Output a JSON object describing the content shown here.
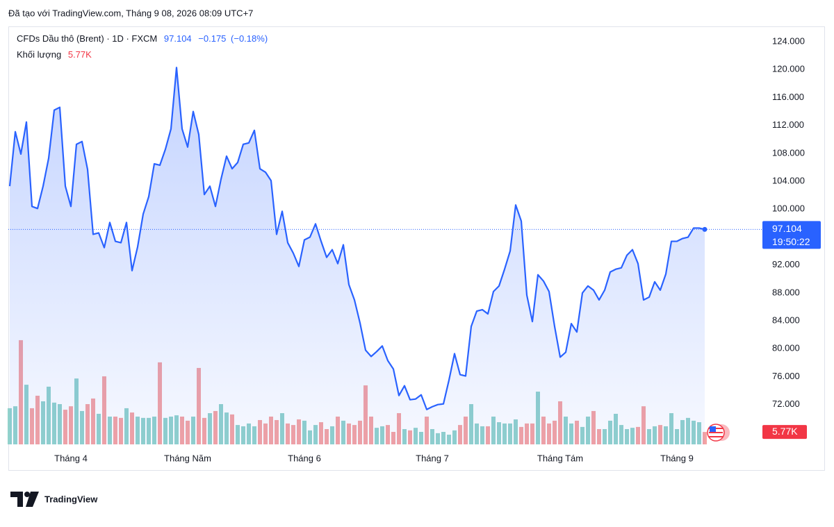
{
  "header": "Đã tạo với TradingView.com, Tháng 9 08, 2026 08:09 UTC+7",
  "logo": "TradingView",
  "chart_data": {
    "type": "area",
    "grid": false,
    "ylim": [
      66.3,
      126
    ],
    "yticks": [
      {
        "value": 72,
        "label": "72.000"
      },
      {
        "value": 76,
        "label": "76.000"
      },
      {
        "value": 80,
        "label": "80.000"
      },
      {
        "value": 84,
        "label": "84.000"
      },
      {
        "value": 88,
        "label": "88.000"
      },
      {
        "value": 92,
        "label": "92.000"
      },
      {
        "value": 96,
        "label": "96.000"
      },
      {
        "value": 100,
        "label": "100.000"
      },
      {
        "value": 104,
        "label": "104.000"
      },
      {
        "value": 108,
        "label": "108.000"
      },
      {
        "value": 112,
        "label": "112.000"
      },
      {
        "value": 116,
        "label": "116.000"
      },
      {
        "value": 120,
        "label": "120.000"
      },
      {
        "value": 124,
        "label": "124.000"
      }
    ],
    "y2lim": [
      0,
      193.5
    ],
    "change": {
      "value": -0.175,
      "label": "−0.175"
    },
    "change_percent": {
      "value": -0.18,
      "label": "(−0.18%)"
    },
    "countdown": "19:50:22",
    "categories": [
      null,
      null,
      null,
      null,
      null,
      null,
      null,
      null,
      null,
      null,
      null,
      "Tháng 4",
      null,
      null,
      null,
      null,
      null,
      null,
      null,
      null,
      null,
      null,
      null,
      null,
      null,
      null,
      null,
      null,
      null,
      null,
      null,
      null,
      "Tháng Năm",
      null,
      null,
      null,
      null,
      null,
      null,
      null,
      null,
      null,
      null,
      null,
      null,
      null,
      null,
      null,
      null,
      null,
      null,
      null,
      null,
      "Tháng 6",
      null,
      null,
      null,
      null,
      null,
      null,
      null,
      null,
      null,
      null,
      null,
      null,
      null,
      null,
      null,
      null,
      null,
      null,
      null,
      null,
      null,
      null,
      "Tháng 7",
      null,
      null,
      null,
      null,
      null,
      null,
      null,
      null,
      null,
      null,
      null,
      null,
      null,
      null,
      null,
      null,
      null,
      null,
      null,
      null,
      null,
      null,
      "Tháng Tám",
      null,
      null,
      null,
      null,
      null,
      null,
      null,
      null,
      null,
      null,
      null,
      null,
      null,
      null,
      null,
      null,
      null,
      null,
      null,
      null,
      "Tháng 9",
      null,
      null,
      null,
      null,
      null
    ],
    "series": [
      {
        "name": "CFDs Dầu thô (Brent) · 1D · FXCM",
        "color": "#2962ff",
        "values": [
          103.3,
          111.1,
          107.9,
          112.5,
          100.4,
          100.1,
          103.3,
          107.3,
          114.2,
          114.6,
          103.3,
          100.4,
          109.3,
          109.7,
          105.7,
          96.4,
          96.6,
          94.5,
          98.1,
          95.4,
          95.2,
          98.1,
          91.2,
          94.6,
          99.3,
          101.8,
          106.5,
          106.3,
          108.6,
          111.5,
          120.3,
          111.5,
          108.9,
          114.0,
          110.7,
          102.1,
          103.3,
          100.4,
          104.3,
          107.6,
          105.8,
          106.7,
          109.3,
          109.5,
          111.3,
          105.8,
          105.3,
          104.1,
          96.4,
          99.7,
          95.2,
          93.7,
          91.8,
          95.6,
          96.0,
          97.9,
          95.4,
          93.1,
          94.2,
          92.2,
          94.9,
          89.2,
          87.0,
          83.7,
          79.8,
          78.9,
          79.6,
          80.4,
          78.3,
          77.1,
          73.3,
          74.7,
          72.7,
          72.8,
          73.4,
          71.3,
          71.7,
          72.0,
          72.1,
          75.5,
          79.3,
          76.3,
          76.1,
          83.2,
          85.4,
          85.6,
          85.0,
          88.2,
          89.0,
          91.4,
          94.0,
          100.6,
          98.3,
          87.7,
          83.9,
          90.6,
          89.7,
          88.2,
          83.2,
          78.8,
          79.5,
          83.6,
          82.4,
          88.0,
          89.0,
          88.4,
          87.0,
          88.4,
          91.0,
          91.4,
          91.6,
          93.4,
          94.2,
          92.2,
          87.0,
          87.4,
          89.6,
          88.4,
          90.7,
          95.4,
          95.4,
          95.8,
          96.0,
          97.3,
          97.3,
          97.104
        ]
      },
      {
        "name": "Khối lượng",
        "type": "bar",
        "axis": "y2",
        "up_color": "#92d2cc",
        "down_color": "#f5a3a3",
        "label_color": "#f23645",
        "values": [
          16.8,
          17.7,
          48.4,
          27.7,
          16.8,
          22.6,
          20.0,
          26.8,
          19.4,
          18.7,
          16.1,
          17.7,
          30.6,
          15.5,
          18.7,
          21.3,
          14.2,
          31.6,
          12.9,
          12.9,
          12.3,
          16.8,
          14.8,
          12.9,
          12.3,
          12.3,
          12.9,
          38.1,
          12.3,
          12.9,
          13.5,
          12.9,
          11.0,
          12.9,
          35.5,
          12.3,
          14.5,
          15.5,
          18.7,
          14.8,
          13.9,
          9.0,
          8.4,
          9.7,
          8.4,
          11.3,
          9.7,
          12.9,
          11.3,
          14.5,
          9.7,
          9.0,
          11.6,
          11.0,
          6.5,
          9.0,
          10.3,
          7.1,
          8.4,
          12.9,
          11.0,
          9.7,
          9.0,
          11.0,
          27.4,
          12.9,
          7.7,
          8.4,
          9.0,
          5.8,
          14.5,
          7.1,
          6.5,
          7.7,
          5.8,
          12.9,
          7.1,
          5.2,
          5.8,
          4.5,
          6.5,
          9.0,
          12.9,
          18.7,
          9.7,
          8.4,
          8.4,
          12.9,
          10.3,
          9.7,
          9.7,
          11.6,
          8.1,
          9.7,
          9.7,
          24.5,
          12.9,
          9.7,
          11.0,
          20.0,
          12.9,
          9.7,
          11.0,
          8.1,
          12.9,
          15.5,
          7.1,
          7.1,
          11.0,
          14.2,
          9.0,
          7.1,
          7.7,
          8.1,
          17.7,
          7.1,
          8.4,
          9.0,
          8.4,
          14.5,
          7.1,
          11.3,
          12.3,
          11.0,
          10.3,
          5.77
        ],
        "value_labels": [
          null,
          null,
          null,
          null,
          null,
          null,
          null,
          null,
          null,
          null,
          null,
          null,
          null,
          null,
          null,
          null,
          null,
          null,
          null,
          null,
          null,
          null,
          null,
          null,
          null,
          null,
          null,
          null,
          null,
          null,
          null,
          null,
          null,
          null,
          null,
          null,
          null,
          null,
          null,
          null,
          null,
          null,
          null,
          null,
          null,
          null,
          null,
          null,
          null,
          null,
          null,
          null,
          null,
          null,
          null,
          null,
          null,
          null,
          null,
          null,
          null,
          null,
          null,
          null,
          null,
          null,
          null,
          null,
          null,
          null,
          null,
          null,
          null,
          null,
          null,
          null,
          null,
          null,
          null,
          null,
          null,
          null,
          null,
          null,
          null,
          null,
          null,
          null,
          null,
          null,
          null,
          null,
          null,
          null,
          null,
          null,
          null,
          null,
          null,
          null,
          null,
          null,
          null,
          null,
          null,
          null,
          null,
          null,
          null,
          null,
          null,
          null,
          null,
          null,
          null,
          null,
          null,
          null,
          null,
          null,
          null,
          null,
          null,
          null,
          null,
          "5.77K"
        ]
      }
    ]
  }
}
